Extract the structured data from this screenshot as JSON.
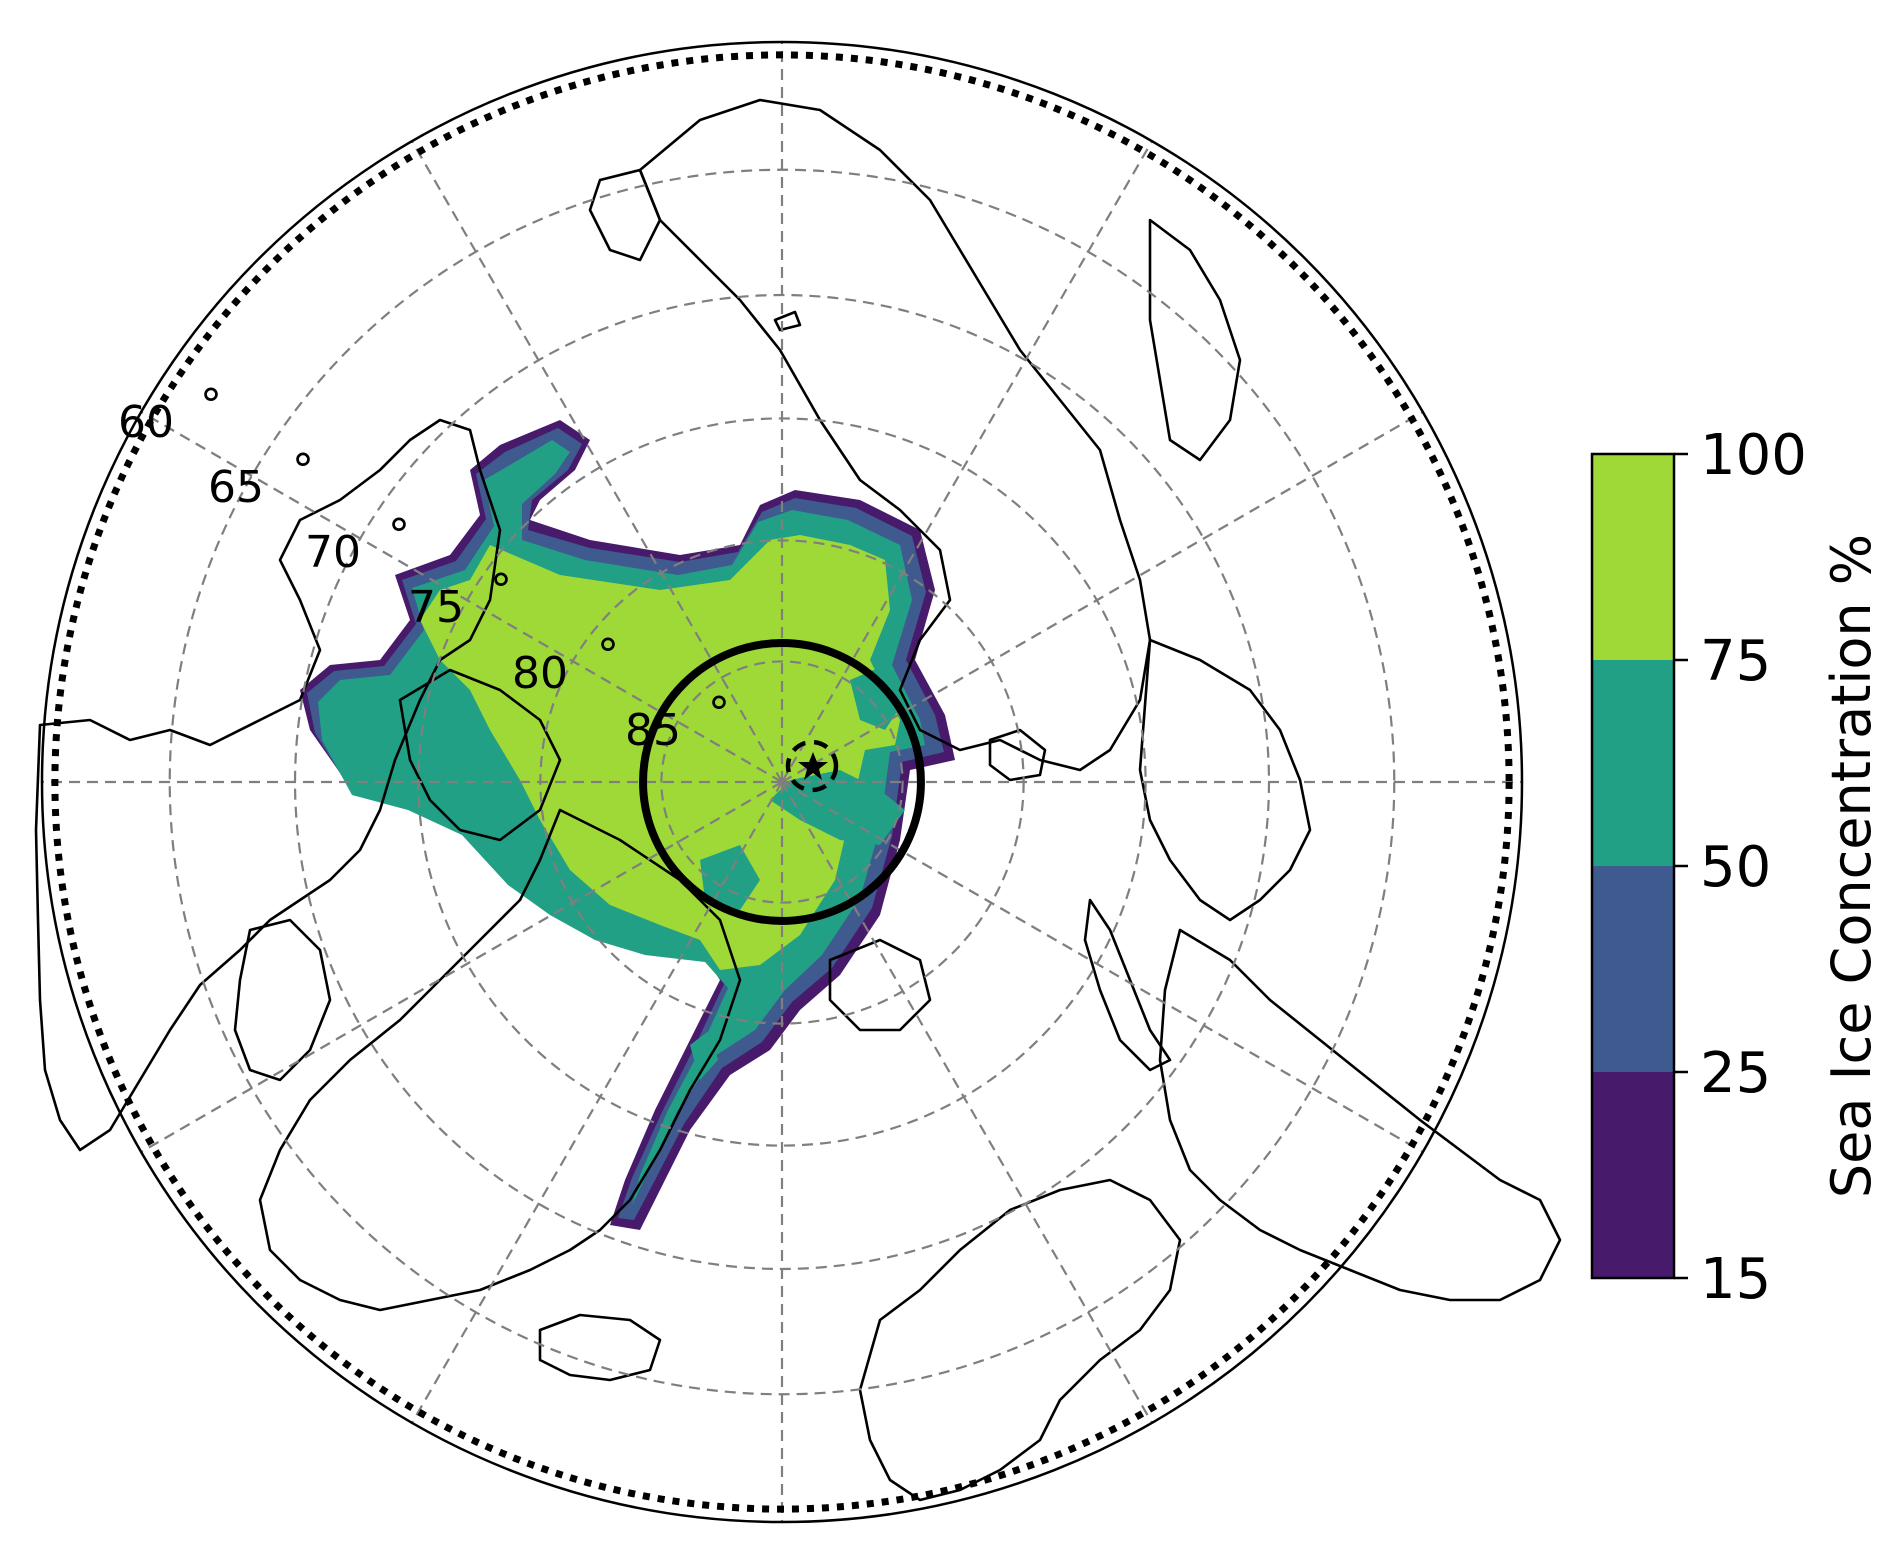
{
  "map": {
    "projection": "north-polar-stereographic",
    "latitude_labels": [
      "60",
      "65",
      "70",
      "75",
      "80",
      "85"
    ],
    "degree_symbol": "°",
    "grid_latitudes": [
      60,
      65,
      70,
      75,
      80,
      85
    ],
    "grid_meridian_count": 12,
    "boundary_circle_latitude": 60,
    "dotted_circle_latitude": 60.5,
    "solid_circle_latitude": 84,
    "dashed_small_circle_latitude": 89,
    "pole_marker": "star"
  },
  "colorbar": {
    "title": "Sea Ice Concentration %",
    "ticks": [
      "15",
      "25",
      "50",
      "75",
      "100"
    ],
    "levels": [
      15,
      25,
      50,
      75,
      100
    ],
    "colors": [
      "#481a6c",
      "#3e5a8f",
      "#21a085",
      "#9fd938"
    ]
  },
  "colors": {
    "ice_low": "#481a6c",
    "ice_mid": "#3e5a8f",
    "ice_high": "#21a085",
    "ice_full": "#9fd938",
    "grid": "#7f7f7f",
    "coast": "#000000"
  }
}
